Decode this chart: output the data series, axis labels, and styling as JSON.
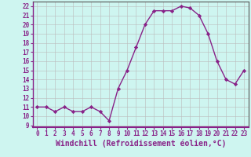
{
  "x": [
    0,
    1,
    2,
    3,
    4,
    5,
    6,
    7,
    8,
    9,
    10,
    11,
    12,
    13,
    14,
    15,
    16,
    17,
    18,
    19,
    20,
    21,
    22,
    23
  ],
  "y": [
    11,
    11,
    10.5,
    11,
    10.5,
    10.5,
    11,
    10.5,
    9.5,
    13,
    15,
    17.5,
    20,
    21.5,
    21.5,
    21.5,
    22,
    21.8,
    21,
    19,
    16,
    14,
    13.5,
    15
  ],
  "line_color": "#882288",
  "marker": "D",
  "marker_size": 2.2,
  "bg_color": "#cef5f0",
  "grid_color": "#bbbbbb",
  "xlabel": "Windchill (Refroidissement éolien,°C)",
  "xlabel_color": "#882288",
  "xlabel_fontsize": 7,
  "ylim": [
    8.8,
    22.5
  ],
  "xlim": [
    -0.5,
    23.5
  ],
  "yticks": [
    9,
    10,
    11,
    12,
    13,
    14,
    15,
    16,
    17,
    18,
    19,
    20,
    21,
    22
  ],
  "xticks": [
    0,
    1,
    2,
    3,
    4,
    5,
    6,
    7,
    8,
    9,
    10,
    11,
    12,
    13,
    14,
    15,
    16,
    17,
    18,
    19,
    20,
    21,
    22,
    23
  ],
  "tick_fontsize": 5.5,
  "line_width": 1.0
}
